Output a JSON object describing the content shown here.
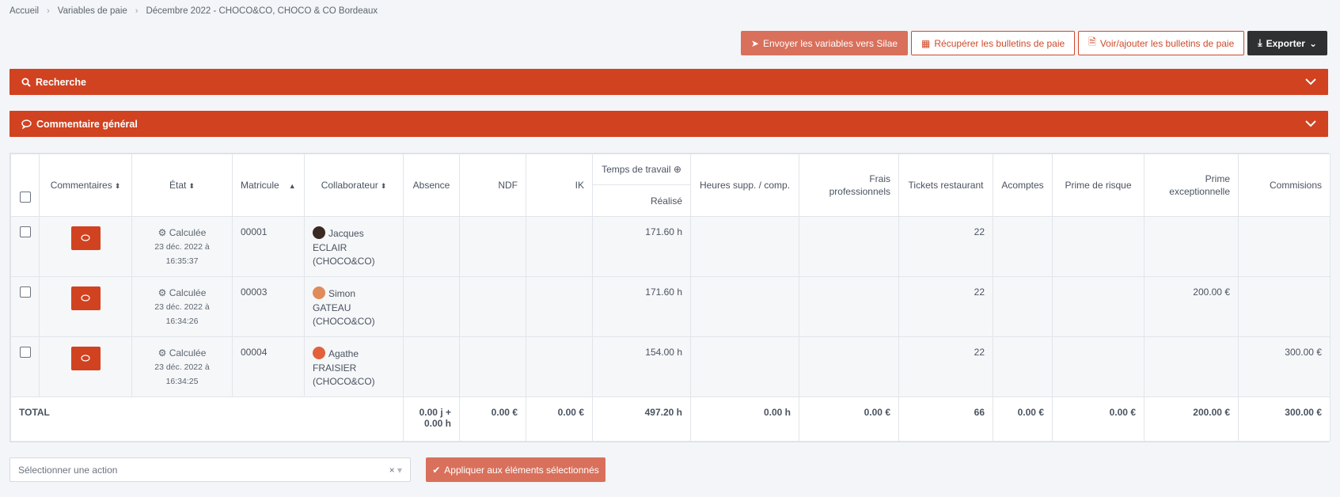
{
  "breadcrumb": [
    "Accueil",
    "Variables de paie",
    "Décembre 2022 - CHOCO&CO, CHOCO & CO Bordeaux"
  ],
  "toolbar": {
    "send": "Envoyer les variables vers Silae",
    "fetch": "Récupérer les bulletins de paie",
    "view": "Voir/ajouter les bulletins de paie",
    "export": "Exporter"
  },
  "panels": {
    "search": "Recherche",
    "comment": "Commentaire général"
  },
  "table": {
    "headers": {
      "comments": "Commentaires",
      "state": "État",
      "matricule": "Matricule",
      "collab": "Collaborateur",
      "absence": "Absence",
      "ndf": "NDF",
      "ik": "IK",
      "temps": "Temps de travail",
      "realise": "Réalisé",
      "heures": "Heures supp. / comp.",
      "frais": "Frais professionnels",
      "tickets": "Tickets restaurant",
      "acomptes": "Acomptes",
      "prime_risque": "Prime de risque",
      "prime_exc": "Prime exceptionnelle",
      "commissions": "Commisions"
    },
    "rows": [
      {
        "state": "Calculée",
        "date": "23 déc. 2022 à",
        "time": "16:35:37",
        "matricule": "00001",
        "first": "Jacques",
        "last": "ECLAIR",
        "company": "(CHOCO&CO)",
        "realise": "171.60 h",
        "tickets": "22",
        "prime_exc": "",
        "commissions": ""
      },
      {
        "state": "Calculée",
        "date": "23 déc. 2022 à",
        "time": "16:34:26",
        "matricule": "00003",
        "first": "Simon",
        "last": "GATEAU",
        "company": "(CHOCO&CO)",
        "realise": "171.60 h",
        "tickets": "22",
        "prime_exc": "200.00 €",
        "commissions": ""
      },
      {
        "state": "Calculée",
        "date": "23 déc. 2022 à",
        "time": "16:34:25",
        "matricule": "00004",
        "first": "Agathe",
        "last": "FRAISIER",
        "company": "(CHOCO&CO)",
        "realise": "154.00 h",
        "tickets": "22",
        "prime_exc": "",
        "commissions": "300.00 €"
      }
    ],
    "total": {
      "label": "TOTAL",
      "absence_1": "0.00 j +",
      "absence_2": "0.00 h",
      "ndf": "0.00 €",
      "ik": "0.00 €",
      "realise": "497.20 h",
      "heures": "0.00 h",
      "frais": "0.00 €",
      "tickets": "66",
      "acomptes": "0.00 €",
      "prime_risque": "0.00 €",
      "prime_exc": "200.00 €",
      "commissions": "300.00 €"
    }
  },
  "bottom": {
    "select_placeholder": "Sélectionner une action",
    "apply": "Appliquer aux éléments sélectionnés"
  }
}
